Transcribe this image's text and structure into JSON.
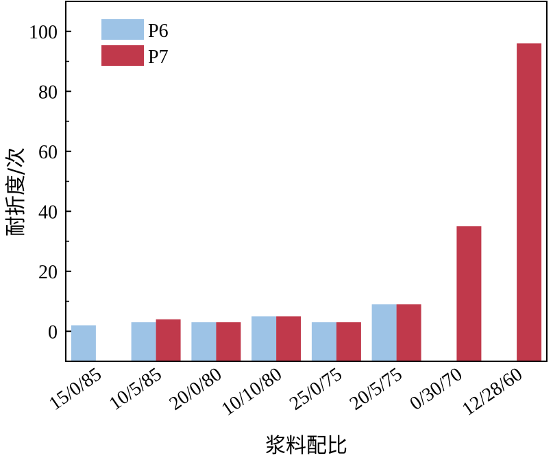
{
  "chart_data": {
    "type": "bar",
    "title": "",
    "xlabel": "浆料配比",
    "ylabel": "耐折度/次",
    "categories": [
      "15/0/85",
      "10/5/85",
      "20/0/80",
      "10/10/80",
      "25/0/75",
      "20/5/75",
      "0/30/70",
      "12/28/60"
    ],
    "series": [
      {
        "name": "P6",
        "color": "#9dc3e6",
        "values": [
          2,
          3,
          3,
          5,
          3,
          9,
          null,
          null
        ]
      },
      {
        "name": "P7",
        "color": "#c0394b",
        "values": [
          null,
          4,
          3,
          5,
          3,
          9,
          35,
          96
        ]
      }
    ],
    "ylim": [
      -10,
      110
    ],
    "yticks": [
      0,
      20,
      40,
      60,
      80,
      100
    ],
    "grid": false,
    "legend_position": "top-left"
  }
}
